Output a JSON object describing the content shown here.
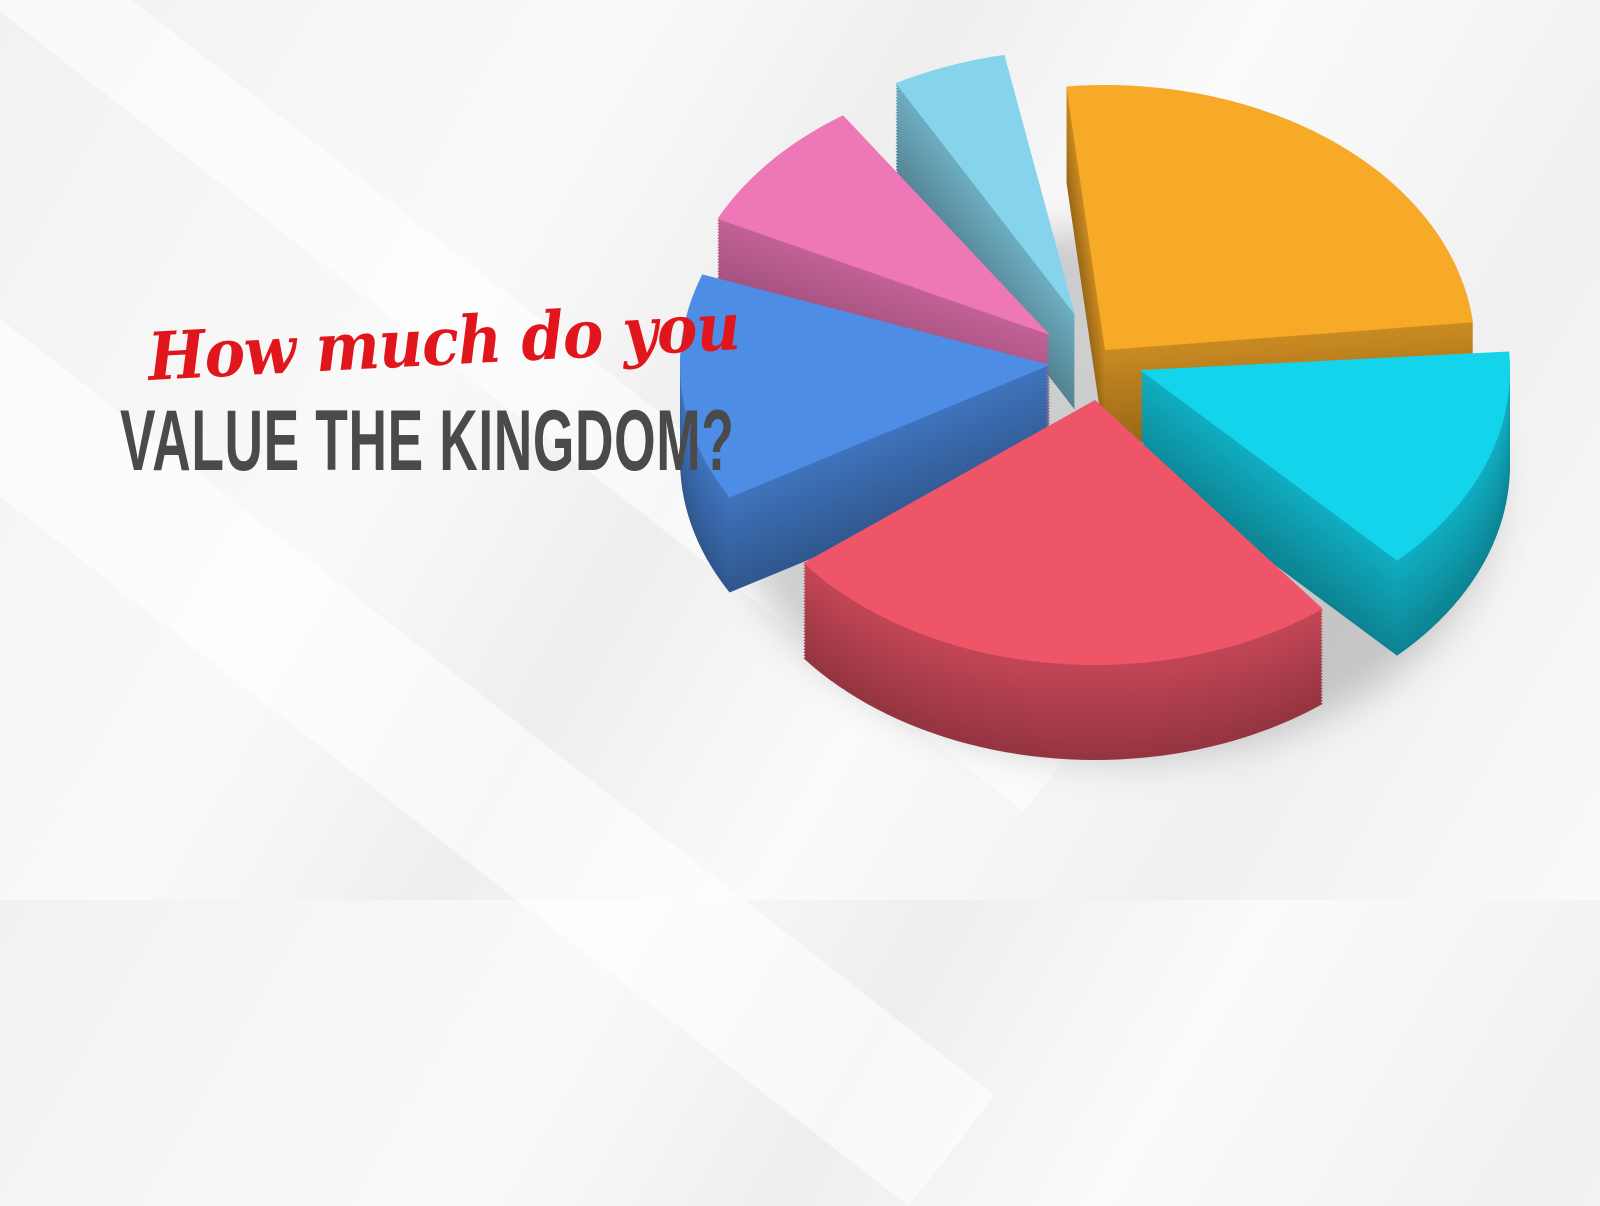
{
  "headline": {
    "script_line": "How much do you",
    "main_line": "VALUE THE KINGDOM?"
  },
  "colors": {
    "script_text": "#e0161c",
    "main_text": "#4a4a4a",
    "slices": [
      "#f7a928",
      "#14d4ec",
      "#ee5568",
      "#4d8de6",
      "#ee77b8",
      "#86d4ec"
    ]
  }
}
